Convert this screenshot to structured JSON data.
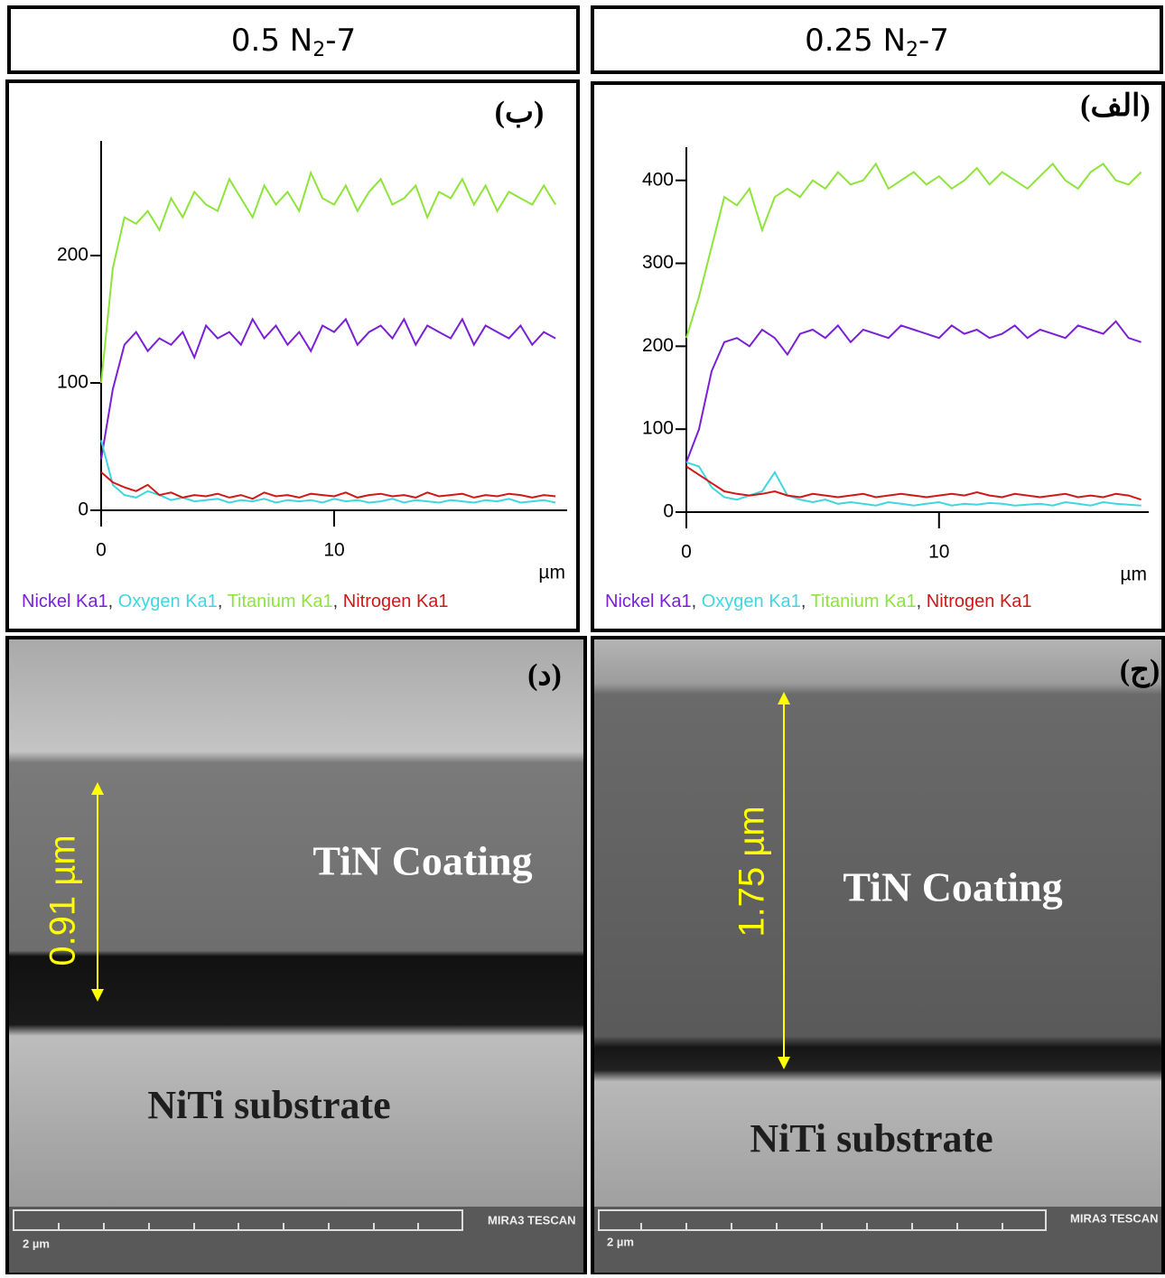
{
  "headers": [
    {
      "prefix": "0.5 N",
      "sub": "2",
      "suffix": "-7"
    },
    {
      "prefix": "0.25 N",
      "sub": "2",
      "suffix": "-7"
    }
  ],
  "legend_separator": ", ",
  "chart_data": [
    {
      "type": "line",
      "label": "(ب)",
      "x_label": "µm",
      "xlim": [
        0,
        20
      ],
      "xticks": [
        0,
        10
      ],
      "ylim": [
        0,
        290
      ],
      "yticks": [
        0,
        100,
        200
      ],
      "x": [
        0,
        0.5,
        1,
        1.5,
        2,
        2.5,
        3,
        3.5,
        4,
        4.5,
        5,
        5.5,
        6,
        6.5,
        7,
        7.5,
        8,
        8.5,
        9,
        9.5,
        10,
        10.5,
        11,
        11.5,
        12,
        12.5,
        13,
        13.5,
        14,
        14.5,
        15,
        15.5,
        16,
        16.5,
        17,
        17.5,
        18,
        18.5,
        19,
        19.5
      ],
      "series": [
        {
          "name": "Nickel Ka1",
          "color": "#7a1fd6",
          "values": [
            40,
            95,
            130,
            140,
            125,
            135,
            130,
            140,
            120,
            145,
            135,
            140,
            130,
            150,
            135,
            145,
            130,
            140,
            125,
            145,
            140,
            150,
            130,
            140,
            145,
            135,
            150,
            130,
            145,
            140,
            135,
            150,
            130,
            145,
            140,
            135,
            145,
            130,
            140,
            135
          ]
        },
        {
          "name": "Oxygen Ka1",
          "color": "#3fd6e0",
          "values": [
            55,
            20,
            12,
            10,
            15,
            12,
            8,
            10,
            7,
            8,
            9,
            6,
            8,
            7,
            9,
            6,
            8,
            7,
            8,
            6,
            9,
            7,
            8,
            6,
            7,
            9,
            6,
            8,
            7,
            6,
            8,
            7,
            6,
            8,
            7,
            9,
            6,
            7,
            8,
            6
          ]
        },
        {
          "name": "Titanium Ka1",
          "color": "#8ee43a",
          "values": [
            100,
            190,
            230,
            225,
            235,
            220,
            245,
            230,
            250,
            240,
            235,
            260,
            245,
            230,
            255,
            240,
            250,
            235,
            265,
            245,
            240,
            255,
            235,
            250,
            260,
            240,
            245,
            255,
            230,
            250,
            245,
            260,
            240,
            255,
            235,
            250,
            245,
            240,
            255,
            240
          ]
        },
        {
          "name": "Nitrogen Ka1",
          "color": "#d01818",
          "values": [
            30,
            22,
            18,
            15,
            20,
            12,
            14,
            10,
            12,
            11,
            13,
            10,
            12,
            9,
            14,
            11,
            12,
            10,
            13,
            12,
            11,
            14,
            10,
            12,
            13,
            11,
            12,
            10,
            14,
            11,
            12,
            13,
            10,
            12,
            11,
            13,
            12,
            10,
            12,
            11
          ]
        }
      ]
    },
    {
      "type": "line",
      "label": "(الف)",
      "x_label": "µm",
      "xlim": [
        0,
        18.3
      ],
      "xticks": [
        0,
        10
      ],
      "ylim": [
        0,
        440
      ],
      "yticks": [
        0,
        100,
        200,
        300,
        400
      ],
      "x": [
        0,
        0.5,
        1,
        1.5,
        2,
        2.5,
        3,
        3.5,
        4,
        4.5,
        5,
        5.5,
        6,
        6.5,
        7,
        7.5,
        8,
        8.5,
        9,
        9.5,
        10,
        10.5,
        11,
        11.5,
        12,
        12.5,
        13,
        13.5,
        14,
        14.5,
        15,
        15.5,
        16,
        16.5,
        17,
        17.5,
        18
      ],
      "series": [
        {
          "name": "Nickel Ka1",
          "color": "#7a1fd6",
          "values": [
            60,
            100,
            170,
            205,
            210,
            200,
            220,
            210,
            190,
            215,
            220,
            210,
            225,
            205,
            220,
            215,
            210,
            225,
            220,
            215,
            210,
            225,
            215,
            220,
            210,
            215,
            225,
            210,
            220,
            215,
            210,
            225,
            220,
            215,
            230,
            210,
            205
          ]
        },
        {
          "name": "Oxygen Ka1",
          "color": "#3fd6e0",
          "values": [
            60,
            55,
            30,
            18,
            15,
            20,
            25,
            48,
            20,
            15,
            12,
            15,
            10,
            12,
            10,
            8,
            12,
            10,
            8,
            10,
            12,
            8,
            10,
            9,
            11,
            10,
            8,
            9,
            10,
            8,
            12,
            10,
            8,
            12,
            10,
            9,
            8
          ]
        },
        {
          "name": "Titanium Ka1",
          "color": "#8ee43a",
          "values": [
            210,
            260,
            320,
            380,
            370,
            390,
            340,
            380,
            390,
            380,
            400,
            390,
            410,
            395,
            400,
            420,
            390,
            400,
            410,
            395,
            405,
            390,
            400,
            415,
            395,
            410,
            400,
            390,
            405,
            420,
            400,
            390,
            410,
            420,
            400,
            395,
            410
          ]
        },
        {
          "name": "Nitrogen Ka1",
          "color": "#d01818",
          "values": [
            55,
            45,
            35,
            25,
            22,
            20,
            22,
            25,
            20,
            18,
            22,
            20,
            18,
            20,
            22,
            18,
            20,
            22,
            20,
            18,
            20,
            22,
            20,
            24,
            20,
            18,
            22,
            20,
            18,
            20,
            22,
            18,
            20,
            18,
            22,
            20,
            15
          ]
        }
      ]
    }
  ],
  "images": [
    {
      "label": "(د)",
      "coating": "TiN Coating",
      "substrate": "NiTi substrate",
      "thickness": "0.91 µm",
      "brand": "MIRA3 TESCAN",
      "scale": "2 µm"
    },
    {
      "label": "(ج)",
      "coating": "TiN Coating",
      "substrate": "NiTi substrate",
      "thickness": "1.75 µm",
      "brand": "MIRA3 TESCAN",
      "scale": "2 µm"
    }
  ]
}
